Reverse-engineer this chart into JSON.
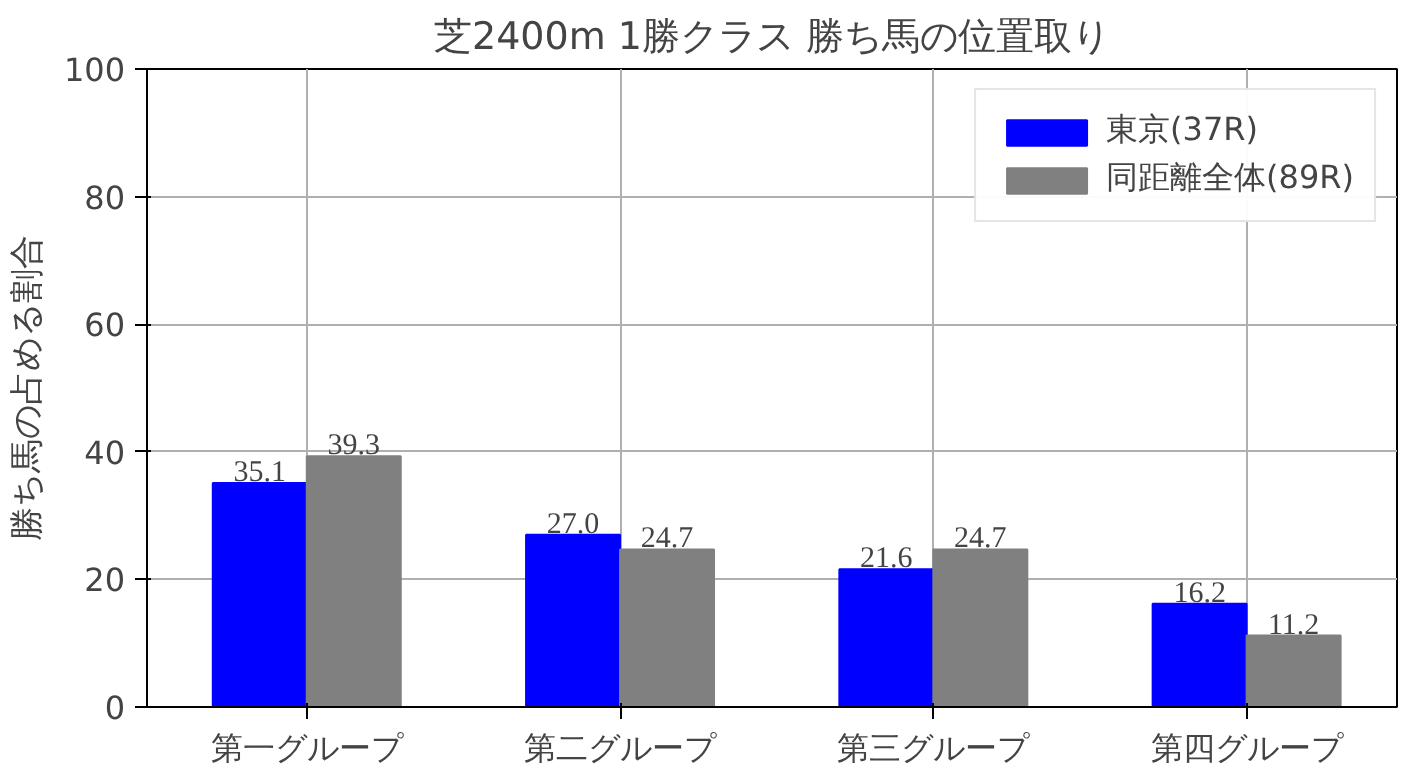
{
  "chart_data": {
    "type": "bar",
    "title": "芝2400m 1勝クラス 勝ち馬の位置取り",
    "ylabel": "勝ち馬の占める割合",
    "categories": [
      "第一グループ",
      "第二グループ",
      "第三グループ",
      "第四グループ"
    ],
    "series": [
      {
        "name": "東京(37R)",
        "color": "#0000ff",
        "values": [
          35.1,
          27.0,
          21.6,
          16.2
        ],
        "value_labels": [
          "35.1",
          "27.0",
          "21.6",
          "16.2"
        ]
      },
      {
        "name": "同距離全体(89R)",
        "color": "#808080",
        "values": [
          39.3,
          24.7,
          24.7,
          11.2
        ],
        "value_labels": [
          "39.3",
          "24.7",
          "24.7",
          "11.2"
        ]
      }
    ],
    "ylim": [
      0,
      100
    ],
    "yticks": [
      0,
      20,
      40,
      60,
      80,
      100
    ],
    "grid": true,
    "legend": "top right"
  }
}
